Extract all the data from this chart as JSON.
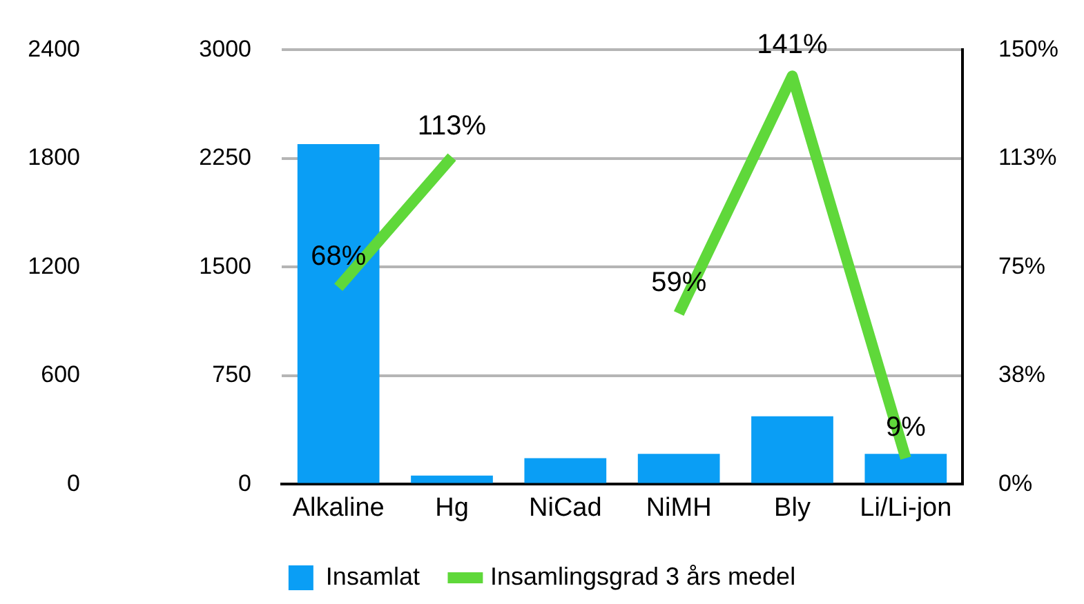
{
  "chart_data": {
    "type": "bar",
    "categories": [
      "Alkaline",
      "Hg",
      "NiCad",
      "NiMH",
      "Bly",
      "Li/Li-jon"
    ],
    "series": [
      {
        "name": "Insamlat",
        "color": "#0a9ef5",
        "values": [
          2350,
          60,
          180,
          210,
          470,
          210
        ]
      },
      {
        "name": "Insamlingsgrad 3 års medel",
        "type": "line",
        "axis": "y2",
        "color": "#5fd83a",
        "values": [
          68,
          113,
          null,
          59,
          141,
          9
        ],
        "value_labels": [
          "68%",
          "113%",
          null,
          "59%",
          "141%",
          "9%"
        ]
      }
    ],
    "ylim": [
      0,
      3000
    ],
    "yticks": [
      0,
      750,
      1500,
      2250,
      3000
    ],
    "y2lim": [
      0,
      150
    ],
    "y2ticks": [
      {
        "value": 0,
        "label": "0%"
      },
      {
        "value": 37.5,
        "label": "38%"
      },
      {
        "value": 75,
        "label": "75%"
      },
      {
        "value": 112.5,
        "label": "113%"
      },
      {
        "value": 150,
        "label": "150%"
      }
    ],
    "y3lim": [
      0,
      2400
    ],
    "y3ticks": [
      0,
      600,
      1200,
      1800,
      2400
    ],
    "grid": "y",
    "legend": "bottom",
    "marker": "none",
    "line_style": "solid"
  }
}
